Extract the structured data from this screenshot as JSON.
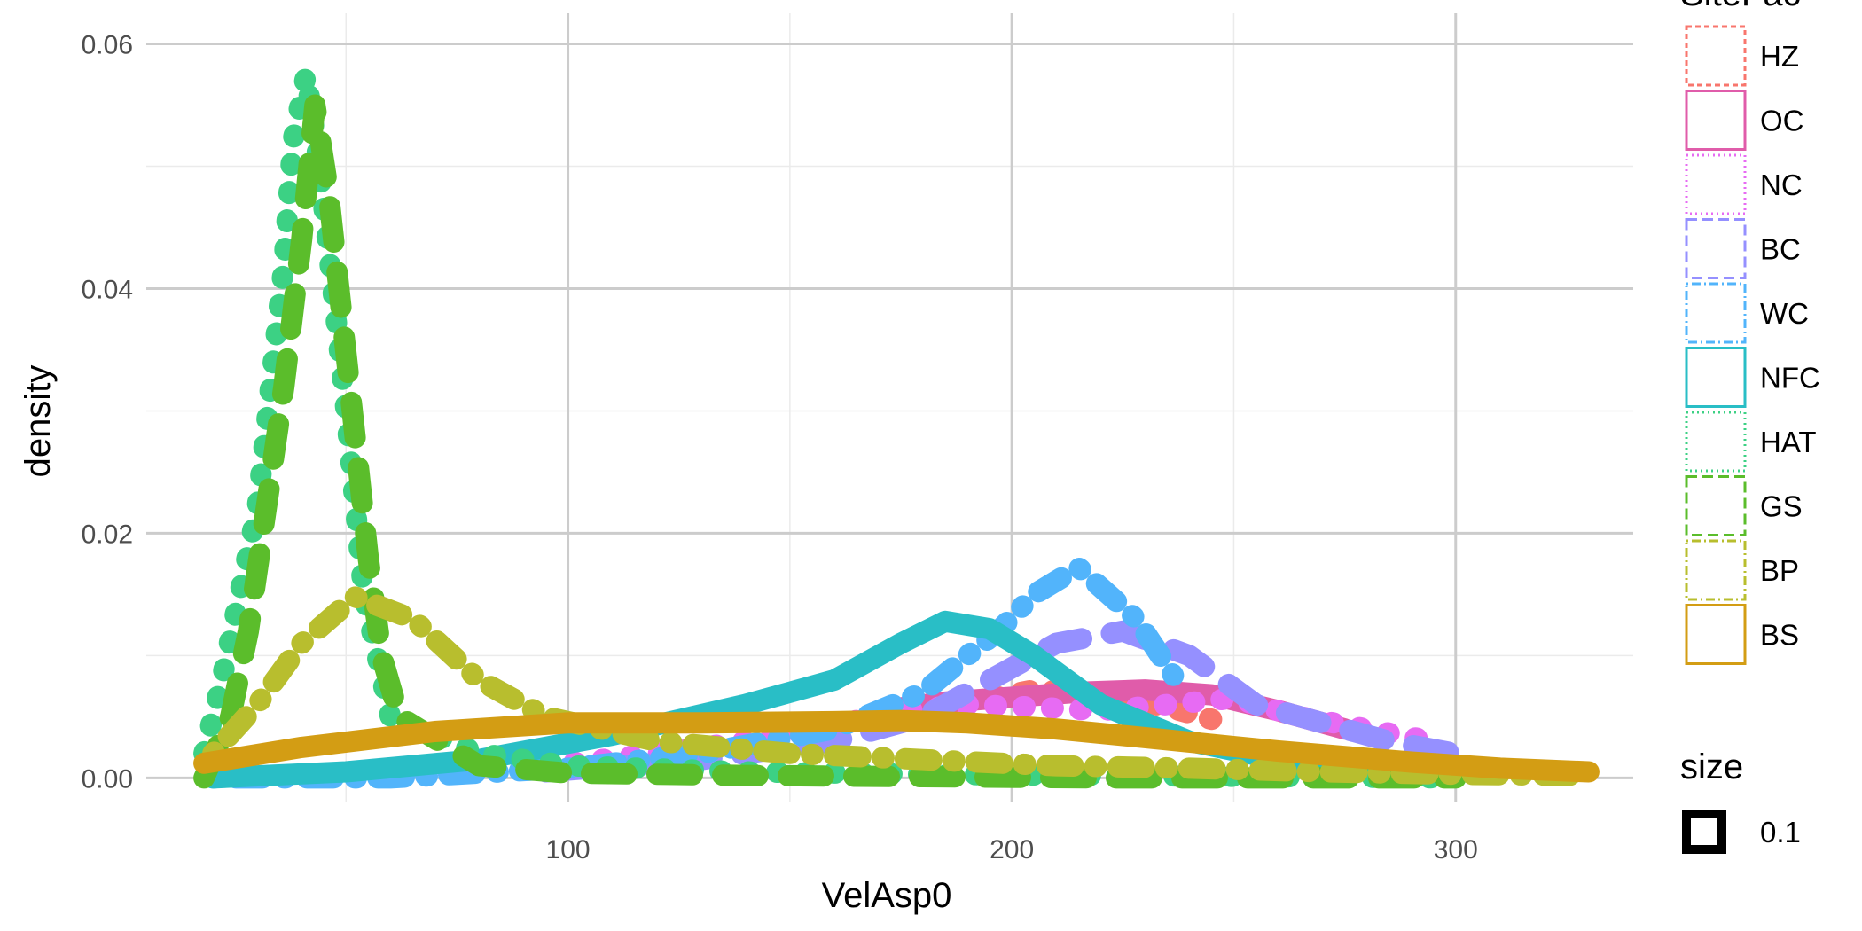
{
  "chart_data": {
    "type": "line",
    "title": "",
    "xlabel": "VelAsp0",
    "ylabel": "density",
    "xlim": [
      5,
      340
    ],
    "ylim": [
      -0.002,
      0.0625
    ],
    "x_ticks": [
      100,
      200,
      300
    ],
    "x_tick_labels": [
      "100",
      "200",
      "300"
    ],
    "y_ticks": [
      0,
      0.02,
      0.04,
      0.06
    ],
    "y_tick_labels": [
      "0.00",
      "0.02",
      "0.04",
      "0.06"
    ],
    "grid": true,
    "legend": {
      "position": "right",
      "title": "SiteFac",
      "size_title": "size",
      "size_label": "0.1"
    },
    "series": [
      {
        "name": "HZ",
        "color": "#F8766D",
        "dash": "short",
        "x": [
          195,
          205,
          215,
          225,
          235,
          245
        ],
        "y": [
          0.0065,
          0.0072,
          0.007,
          0.0065,
          0.0058,
          0.0048
        ]
      },
      {
        "name": "OC",
        "color": "#E05CAA",
        "dash": "solid",
        "x": [
          170,
          185,
          200,
          215,
          230,
          245,
          260,
          275
        ],
        "y": [
          0.0055,
          0.0062,
          0.0066,
          0.007,
          0.0072,
          0.0068,
          0.0055,
          0.004
        ]
      },
      {
        "name": "NC",
        "color": "#E76BF3",
        "dash": "dotted",
        "x": [
          95,
          120,
          150,
          175,
          190,
          205,
          220,
          235,
          250,
          265,
          280,
          295
        ],
        "y": [
          0.001,
          0.002,
          0.0035,
          0.0055,
          0.006,
          0.0058,
          0.0055,
          0.006,
          0.0065,
          0.005,
          0.004,
          0.003
        ]
      },
      {
        "name": "BC",
        "color": "#9590FF",
        "dash": "long",
        "x": [
          95,
          130,
          160,
          180,
          195,
          210,
          225,
          240,
          255,
          270,
          285,
          300
        ],
        "y": [
          0.0005,
          0.0015,
          0.003,
          0.005,
          0.008,
          0.011,
          0.012,
          0.01,
          0.006,
          0.0045,
          0.003,
          0.002
        ]
      },
      {
        "name": "WC",
        "color": "#52B4FB",
        "dash": "dashdot",
        "x": [
          20,
          60,
          100,
          130,
          160,
          180,
          190,
          197,
          205,
          215,
          228,
          238
        ],
        "y": [
          0.0,
          0.0,
          0.0008,
          0.002,
          0.004,
          0.007,
          0.01,
          0.012,
          0.015,
          0.0172,
          0.013,
          0.0075
        ]
      },
      {
        "name": "NFC",
        "color": "#29BEC6",
        "dash": "solid",
        "x": [
          20,
          50,
          80,
          110,
          140,
          160,
          175,
          185,
          195,
          205,
          220,
          240,
          260,
          280,
          300
        ],
        "y": [
          0.0,
          0.0005,
          0.0015,
          0.0035,
          0.006,
          0.008,
          0.011,
          0.0128,
          0.0122,
          0.01,
          0.006,
          0.003,
          0.0015,
          0.0008,
          0.0005
        ]
      },
      {
        "name": "HAT",
        "color": "#3CD184",
        "dash": "dotted",
        "x": [
          18,
          22,
          26,
          30,
          33,
          36,
          38,
          41,
          44,
          47,
          50,
          54,
          60,
          80,
          100,
          140,
          180,
          220,
          260,
          300
        ],
        "y": [
          0.002,
          0.008,
          0.015,
          0.022,
          0.032,
          0.042,
          0.052,
          0.0575,
          0.05,
          0.04,
          0.03,
          0.015,
          0.005,
          0.002,
          0.001,
          0.0005,
          0.0003,
          0.0002,
          0.0001,
          0.0
        ]
      },
      {
        "name": "GS",
        "color": "#5BBD2B",
        "dash": "long",
        "x": [
          18,
          24,
          28,
          32,
          36,
          40,
          43,
          46,
          49,
          52,
          55,
          58,
          62,
          80,
          100,
          140,
          180,
          220,
          260,
          300
        ],
        "y": [
          0.0,
          0.005,
          0.012,
          0.022,
          0.032,
          0.044,
          0.055,
          0.048,
          0.038,
          0.028,
          0.018,
          0.01,
          0.005,
          0.001,
          0.0004,
          0.0002,
          0.0001,
          0.0,
          0.0,
          0.0
        ]
      },
      {
        "name": "BP",
        "color": "#B8BE2E",
        "dash": "dashdot",
        "x": [
          20,
          30,
          40,
          52,
          65,
          80,
          95,
          120,
          150,
          180,
          210,
          240,
          270,
          300,
          330
        ],
        "y": [
          0.002,
          0.006,
          0.011,
          0.0148,
          0.013,
          0.008,
          0.005,
          0.003,
          0.002,
          0.0015,
          0.001,
          0.0008,
          0.0005,
          0.0003,
          0.0002
        ]
      },
      {
        "name": "BS",
        "color": "#D39D14",
        "dash": "solid",
        "x": [
          18,
          40,
          70,
          100,
          130,
          160,
          175,
          190,
          210,
          230,
          260,
          290,
          310,
          330
        ],
        "y": [
          0.0012,
          0.0025,
          0.0038,
          0.0045,
          0.0045,
          0.0046,
          0.0047,
          0.0045,
          0.004,
          0.0033,
          0.0022,
          0.0013,
          0.0008,
          0.0005
        ]
      }
    ]
  }
}
